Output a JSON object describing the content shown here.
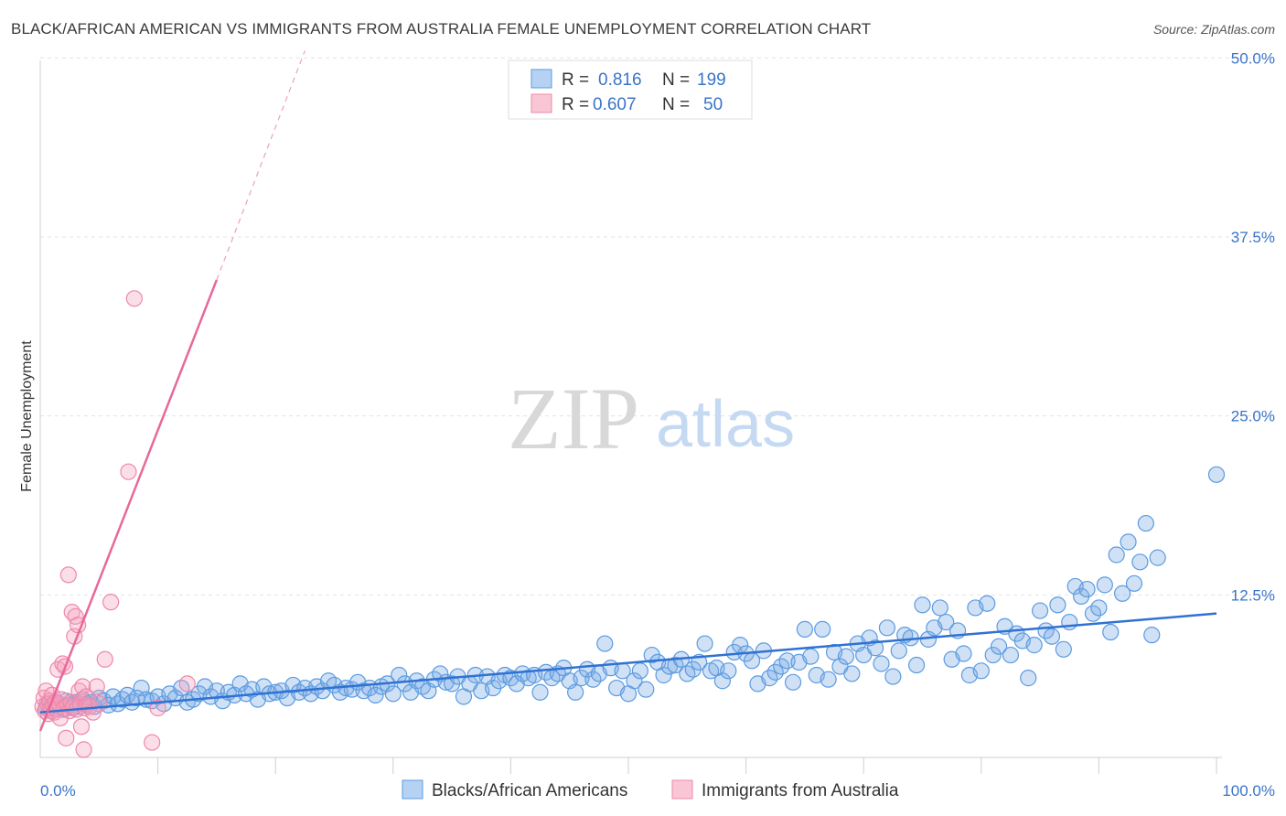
{
  "title": "BLACK/AFRICAN AMERICAN VS IMMIGRANTS FROM AUSTRALIA FEMALE UNEMPLOYMENT CORRELATION CHART",
  "source": "Source: ZipAtlas.com",
  "watermark": {
    "zip": "ZIP",
    "atlas": "atlas"
  },
  "legend": [
    {
      "r_label": "R =",
      "r_value": "0.816",
      "n_label": "N =",
      "n_value": "199",
      "color": "#5b9be0"
    },
    {
      "r_label": "R =",
      "r_value": "0.607",
      "n_label": "N =",
      "n_value": "50",
      "color": "#ee88aa"
    }
  ],
  "chart_data": {
    "type": "scatter",
    "title": "BLACK/AFRICAN AMERICAN VS IMMIGRANTS FROM AUSTRALIA FEMALE UNEMPLOYMENT CORRELATION CHART",
    "ylabel": "Female Unemployment",
    "xlabel": "",
    "xlim": [
      0,
      100
    ],
    "ylim": [
      0,
      52
    ],
    "y_ticks": [
      12.5,
      25.0,
      37.5,
      50.0
    ],
    "y_tick_labels": [
      "12.5%",
      "25.0%",
      "37.5%",
      "50.0%"
    ],
    "x_tick_labels": [
      "0.0%",
      "100.0%"
    ],
    "grid": true,
    "series": [
      {
        "name": "Blacks/African Americans",
        "color": "#5b9be0",
        "trend": {
          "x": [
            0,
            100
          ],
          "y": [
            4.3,
            11.2
          ]
        },
        "points": [
          [
            0.5,
            4.6
          ],
          [
            0.8,
            4.9
          ],
          [
            1.0,
            4.4
          ],
          [
            1.2,
            5.0
          ],
          [
            1.5,
            4.7
          ],
          [
            1.8,
            4.8
          ],
          [
            2.0,
            4.5
          ],
          [
            2.2,
            5.1
          ],
          [
            2.5,
            4.8
          ],
          [
            2.8,
            4.6
          ],
          [
            3.0,
            5.0
          ],
          [
            3.3,
            4.7
          ],
          [
            3.6,
            5.2
          ],
          [
            4.0,
            4.9
          ],
          [
            4.3,
            5.0
          ],
          [
            4.6,
            4.7
          ],
          [
            5.0,
            5.3
          ],
          [
            5.4,
            5.1
          ],
          [
            5.8,
            4.8
          ],
          [
            6.2,
            5.4
          ],
          [
            6.6,
            4.9
          ],
          [
            7.0,
            5.2
          ],
          [
            7.4,
            5.5
          ],
          [
            7.8,
            5.0
          ],
          [
            8.2,
            5.3
          ],
          [
            8.6,
            6.0
          ],
          [
            9.0,
            5.2
          ],
          [
            9.5,
            5.1
          ],
          [
            10.0,
            5.4
          ],
          [
            10.5,
            4.9
          ],
          [
            11.0,
            5.6
          ],
          [
            11.5,
            5.3
          ],
          [
            12.0,
            6.0
          ],
          [
            12.5,
            5.0
          ],
          [
            13.0,
            5.2
          ],
          [
            13.5,
            5.6
          ],
          [
            14.0,
            6.1
          ],
          [
            14.5,
            5.4
          ],
          [
            15.0,
            5.8
          ],
          [
            15.5,
            5.1
          ],
          [
            16.0,
            5.7
          ],
          [
            16.5,
            5.5
          ],
          [
            17.0,
            6.3
          ],
          [
            17.5,
            5.6
          ],
          [
            18.0,
            5.9
          ],
          [
            18.5,
            5.2
          ],
          [
            19.0,
            6.1
          ],
          [
            19.5,
            5.6
          ],
          [
            20.0,
            5.7
          ],
          [
            20.5,
            5.8
          ],
          [
            21.0,
            5.3
          ],
          [
            21.5,
            6.2
          ],
          [
            22.0,
            5.7
          ],
          [
            22.5,
            6.0
          ],
          [
            23.0,
            5.6
          ],
          [
            23.5,
            6.1
          ],
          [
            24.0,
            5.8
          ],
          [
            24.5,
            6.5
          ],
          [
            25.0,
            6.2
          ],
          [
            25.5,
            5.7
          ],
          [
            26.0,
            6.0
          ],
          [
            26.5,
            5.9
          ],
          [
            27.0,
            6.4
          ],
          [
            27.5,
            5.8
          ],
          [
            28.0,
            6.0
          ],
          [
            28.5,
            5.5
          ],
          [
            29.0,
            6.1
          ],
          [
            29.5,
            6.3
          ],
          [
            30.0,
            5.6
          ],
          [
            30.5,
            6.9
          ],
          [
            31.0,
            6.3
          ],
          [
            31.5,
            5.7
          ],
          [
            32.0,
            6.5
          ],
          [
            32.5,
            6.1
          ],
          [
            33.0,
            5.8
          ],
          [
            33.5,
            6.6
          ],
          [
            34.0,
            7.0
          ],
          [
            34.5,
            6.4
          ],
          [
            35.0,
            6.3
          ],
          [
            35.5,
            6.8
          ],
          [
            36.0,
            5.4
          ],
          [
            36.5,
            6.3
          ],
          [
            37.0,
            6.9
          ],
          [
            37.5,
            5.8
          ],
          [
            38.0,
            6.8
          ],
          [
            38.5,
            6.0
          ],
          [
            39.0,
            6.5
          ],
          [
            39.5,
            6.9
          ],
          [
            40.0,
            6.7
          ],
          [
            40.5,
            6.3
          ],
          [
            41.0,
            7.0
          ],
          [
            41.5,
            6.7
          ],
          [
            42.0,
            6.9
          ],
          [
            42.5,
            5.7
          ],
          [
            43.0,
            7.1
          ],
          [
            43.5,
            6.7
          ],
          [
            44.0,
            7.0
          ],
          [
            44.5,
            7.4
          ],
          [
            45.0,
            6.5
          ],
          [
            45.5,
            5.7
          ],
          [
            46.0,
            6.7
          ],
          [
            46.5,
            7.3
          ],
          [
            47.0,
            6.6
          ],
          [
            47.5,
            7.0
          ],
          [
            48.0,
            9.1
          ],
          [
            48.5,
            7.4
          ],
          [
            49.0,
            6.0
          ],
          [
            49.5,
            7.2
          ],
          [
            50.0,
            5.6
          ],
          [
            50.5,
            6.5
          ],
          [
            51.0,
            7.2
          ],
          [
            51.5,
            5.9
          ],
          [
            52.0,
            8.3
          ],
          [
            52.5,
            7.8
          ],
          [
            53.0,
            6.9
          ],
          [
            53.5,
            7.5
          ],
          [
            54.0,
            7.6
          ],
          [
            54.5,
            8.0
          ],
          [
            55.0,
            7.0
          ],
          [
            55.5,
            7.3
          ],
          [
            56.0,
            7.8
          ],
          [
            56.5,
            9.1
          ],
          [
            57.0,
            7.2
          ],
          [
            57.5,
            7.4
          ],
          [
            58.0,
            6.5
          ],
          [
            58.5,
            7.2
          ],
          [
            59.0,
            8.5
          ],
          [
            59.5,
            9.0
          ],
          [
            60.0,
            8.4
          ],
          [
            60.5,
            7.9
          ],
          [
            61.0,
            6.3
          ],
          [
            61.5,
            8.6
          ],
          [
            62.0,
            6.7
          ],
          [
            62.5,
            7.1
          ],
          [
            63.0,
            7.5
          ],
          [
            63.5,
            7.9
          ],
          [
            64.0,
            6.4
          ],
          [
            64.5,
            7.8
          ],
          [
            65.0,
            10.1
          ],
          [
            65.5,
            8.2
          ],
          [
            66.0,
            6.9
          ],
          [
            66.5,
            10.1
          ],
          [
            67.0,
            6.6
          ],
          [
            67.5,
            8.5
          ],
          [
            68.0,
            7.5
          ],
          [
            68.5,
            8.2
          ],
          [
            69.0,
            7.0
          ],
          [
            69.5,
            9.1
          ],
          [
            70.0,
            8.3
          ],
          [
            70.5,
            9.5
          ],
          [
            71.0,
            8.8
          ],
          [
            71.5,
            7.7
          ],
          [
            72.0,
            10.2
          ],
          [
            72.5,
            6.8
          ],
          [
            73.0,
            8.6
          ],
          [
            73.5,
            9.7
          ],
          [
            74.0,
            9.5
          ],
          [
            74.5,
            7.6
          ],
          [
            75.0,
            11.8
          ],
          [
            75.5,
            9.4
          ],
          [
            76.0,
            10.2
          ],
          [
            76.5,
            11.6
          ],
          [
            77.0,
            10.6
          ],
          [
            77.5,
            8.0
          ],
          [
            78.0,
            10.0
          ],
          [
            78.5,
            8.4
          ],
          [
            79.0,
            6.9
          ],
          [
            79.5,
            11.6
          ],
          [
            80.0,
            7.2
          ],
          [
            80.5,
            11.9
          ],
          [
            81.0,
            8.3
          ],
          [
            81.5,
            8.9
          ],
          [
            82.0,
            10.3
          ],
          [
            82.5,
            8.3
          ],
          [
            83.0,
            9.8
          ],
          [
            83.5,
            9.3
          ],
          [
            84.0,
            6.7
          ],
          [
            84.5,
            9.0
          ],
          [
            85.0,
            11.4
          ],
          [
            85.5,
            10.0
          ],
          [
            86.0,
            9.6
          ],
          [
            86.5,
            11.8
          ],
          [
            87.0,
            8.7
          ],
          [
            87.5,
            10.6
          ],
          [
            88.0,
            13.1
          ],
          [
            88.5,
            12.4
          ],
          [
            89.0,
            12.9
          ],
          [
            89.5,
            11.2
          ],
          [
            90.0,
            11.6
          ],
          [
            90.5,
            13.2
          ],
          [
            91.0,
            9.9
          ],
          [
            91.5,
            15.3
          ],
          [
            92.0,
            12.6
          ],
          [
            92.5,
            16.2
          ],
          [
            93.0,
            13.3
          ],
          [
            93.5,
            14.8
          ],
          [
            94.0,
            17.5
          ],
          [
            94.5,
            9.7
          ],
          [
            95.0,
            15.1
          ],
          [
            100.0,
            20.9
          ]
        ]
      },
      {
        "name": "Immigrants from Australia",
        "color": "#ee88aa",
        "trend": {
          "x": [
            0,
            15
          ],
          "y_solid": [
            3.0,
            34.5
          ],
          "x_dashed": [
            15,
            22.5
          ],
          "y_dashed": [
            34.5,
            50.5
          ]
        },
        "points": [
          [
            0.2,
            4.7
          ],
          [
            0.3,
            5.3
          ],
          [
            0.4,
            4.4
          ],
          [
            0.5,
            5.8
          ],
          [
            0.6,
            4.9
          ],
          [
            0.7,
            4.2
          ],
          [
            0.8,
            5.1
          ],
          [
            0.9,
            4.6
          ],
          [
            1.0,
            5.5
          ],
          [
            1.1,
            4.8
          ],
          [
            1.2,
            4.3
          ],
          [
            1.3,
            5.0
          ],
          [
            1.4,
            4.5
          ],
          [
            1.5,
            7.3
          ],
          [
            1.6,
            4.9
          ],
          [
            1.7,
            3.9
          ],
          [
            1.8,
            5.2
          ],
          [
            1.9,
            7.7
          ],
          [
            2.0,
            4.6
          ],
          [
            2.1,
            7.5
          ],
          [
            2.2,
            2.5
          ],
          [
            2.3,
            4.8
          ],
          [
            2.4,
            13.9
          ],
          [
            2.5,
            4.4
          ],
          [
            2.6,
            5.0
          ],
          [
            2.7,
            11.3
          ],
          [
            2.8,
            4.7
          ],
          [
            2.9,
            9.6
          ],
          [
            3.0,
            11.0
          ],
          [
            3.1,
            4.5
          ],
          [
            3.2,
            10.4
          ],
          [
            3.3,
            5.8
          ],
          [
            3.4,
            4.9
          ],
          [
            3.5,
            3.3
          ],
          [
            3.6,
            6.1
          ],
          [
            3.7,
            1.7
          ],
          [
            3.8,
            4.6
          ],
          [
            3.9,
            5.4
          ],
          [
            4.0,
            4.8
          ],
          [
            4.2,
            4.7
          ],
          [
            4.5,
            4.3
          ],
          [
            4.8,
            6.1
          ],
          [
            5.0,
            4.9
          ],
          [
            5.5,
            8.0
          ],
          [
            6.0,
            12.0
          ],
          [
            7.5,
            21.1
          ],
          [
            8.0,
            33.2
          ],
          [
            9.5,
            2.2
          ],
          [
            10.0,
            4.6
          ],
          [
            12.5,
            6.3
          ]
        ]
      }
    ]
  },
  "bottom_legend": [
    {
      "label": "Blacks/African Americans",
      "color": "#5b9be0"
    },
    {
      "label": "Immigrants from Australia",
      "color": "#ee88aa"
    }
  ]
}
